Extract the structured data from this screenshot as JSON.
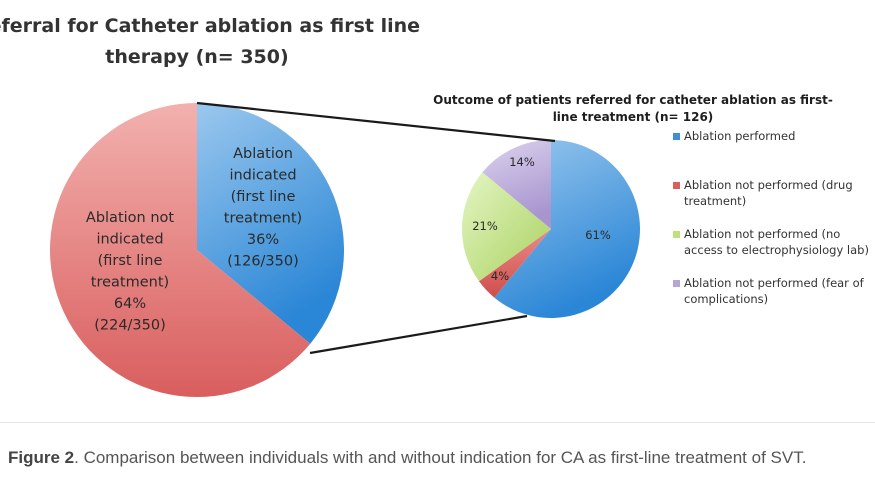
{
  "chart_data": [
    {
      "type": "pie",
      "title": [
        "Referral for Catheter ablation as first line",
        "therapy (n= 350)"
      ],
      "slices": [
        {
          "name": "Ablation indicated (first line treatment)",
          "value": 126,
          "percent": 36,
          "color": "#3d8fd6",
          "label_lines": [
            "Ablation",
            "indicated",
            "(first line",
            "treatment)",
            "36%",
            "(126/350)"
          ]
        },
        {
          "name": "Ablation not indicated (first line treatment)",
          "value": 224,
          "percent": 64,
          "color": "#e27878",
          "label_lines": [
            "Ablation not",
            "indicated",
            "(first line",
            "treatment)",
            "64%",
            "(224/350)"
          ]
        }
      ]
    },
    {
      "type": "pie",
      "title": [
        "Outcome of patients referred for catheter ablation as first-",
        "line treatment (n= 126)"
      ],
      "slices": [
        {
          "name": "Ablation performed",
          "percent": 61,
          "label": "61%",
          "color": "#3d8fd6",
          "legend_lines": [
            "Ablation performed"
          ]
        },
        {
          "name": "Ablation not performed (drug treatment)",
          "percent": 4,
          "label": "4%",
          "color": "#d9605c",
          "legend_lines": [
            "Ablation not performed (drug",
            "treatment)"
          ]
        },
        {
          "name": "Ablation not performed (no access to electrophysiology lab)",
          "percent": 21,
          "label": "21%",
          "color": "#bde27a",
          "legend_lines": [
            "Ablation not performed (no",
            "access to electrophysiology lab)"
          ]
        },
        {
          "name": "Ablation not performed (fear of complications)",
          "percent": 14,
          "label": "14%",
          "color": "#b6a6d6",
          "legend_lines": [
            "Ablation not performed (fear of",
            "complications)"
          ]
        }
      ]
    }
  ],
  "caption": {
    "label": "Figure 2",
    "text": ". Comparison between individuals with and without indication for CA as first-line treatment of SVT."
  }
}
